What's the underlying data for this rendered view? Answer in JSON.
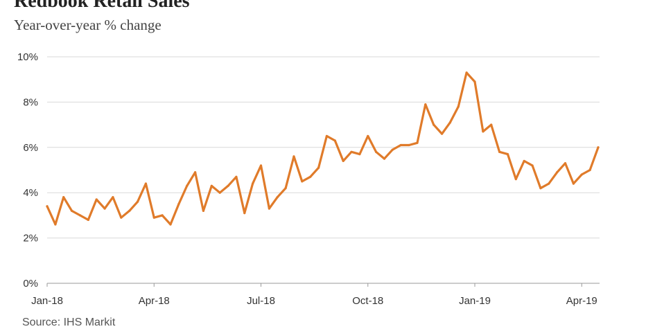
{
  "title": "Redbook Retail Sales",
  "subtitle": "Year-over-year % change",
  "source": "Source: IHS Markit",
  "colors": {
    "line": "#e07b2a",
    "grid": "#d9d9d9",
    "axis": "#999999"
  },
  "chart_data": {
    "type": "line",
    "title": "Redbook Retail Sales",
    "subtitle": "Year-over-year % change",
    "xlabel": "",
    "ylabel": "",
    "ylim": [
      0,
      10
    ],
    "y_ticks": [
      {
        "value": 0,
        "label": "0%"
      },
      {
        "value": 2,
        "label": "2%"
      },
      {
        "value": 4,
        "label": "4%"
      },
      {
        "value": 6,
        "label": "6%"
      },
      {
        "value": 8,
        "label": "8%"
      },
      {
        "value": 10,
        "label": "10%"
      }
    ],
    "x_ticks": [
      {
        "week": 0,
        "label": "Jan-18"
      },
      {
        "week": 13,
        "label": "Apr-18"
      },
      {
        "week": 26,
        "label": "Jul-18"
      },
      {
        "week": 39,
        "label": "Oct-18"
      },
      {
        "week": 52,
        "label": "Jan-19"
      },
      {
        "week": 65,
        "label": "Apr-19"
      }
    ],
    "grid": true,
    "legend": "none",
    "series": [
      {
        "values": [
          3.4,
          2.6,
          3.8,
          3.2,
          3.0,
          2.8,
          3.7,
          3.3,
          3.8,
          2.9,
          3.2,
          3.6,
          4.4,
          2.9,
          3.0,
          2.6,
          3.5,
          4.3,
          4.9,
          3.2,
          4.3,
          4.0,
          4.3,
          4.7,
          3.1,
          4.4,
          5.2,
          3.3,
          3.8,
          4.2,
          5.6,
          4.5,
          4.7,
          5.1,
          6.5,
          6.3,
          5.4,
          5.8,
          5.7,
          6.5,
          5.8,
          5.5,
          5.9,
          6.1,
          6.1,
          6.2,
          7.9,
          7.0,
          6.6,
          7.1,
          7.8,
          9.3,
          8.9,
          6.7,
          7.0,
          5.8,
          5.7,
          4.6,
          5.4,
          5.2,
          4.2,
          4.4,
          4.9,
          5.3,
          4.4,
          4.8,
          5.0,
          6.0
        ]
      }
    ]
  }
}
